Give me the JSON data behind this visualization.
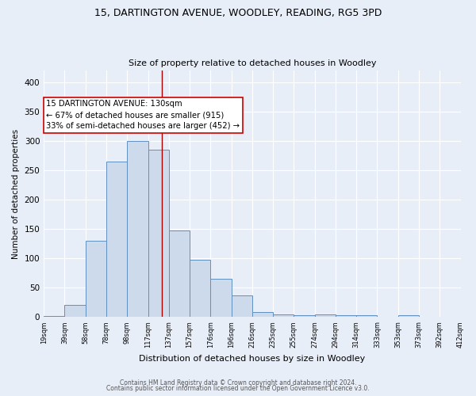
{
  "title1": "15, DARTINGTON AVENUE, WOODLEY, READING, RG5 3PD",
  "title2": "Size of property relative to detached houses in Woodley",
  "xlabel": "Distribution of detached houses by size in Woodley",
  "ylabel": "Number of detached properties",
  "bin_labels": [
    "19sqm",
    "39sqm",
    "58sqm",
    "78sqm",
    "98sqm",
    "117sqm",
    "137sqm",
    "157sqm",
    "176sqm",
    "196sqm",
    "216sqm",
    "235sqm",
    "255sqm",
    "274sqm",
    "294sqm",
    "314sqm",
    "333sqm",
    "353sqm",
    "373sqm",
    "392sqm",
    "412sqm"
  ],
  "bar_heights": [
    2,
    20,
    130,
    265,
    300,
    285,
    147,
    97,
    65,
    37,
    9,
    5,
    3,
    4,
    3,
    3,
    0,
    3,
    0,
    1
  ],
  "bar_color": "#ccdaec",
  "bar_edge_color": "#6090c0",
  "background_color": "#e8eef8",
  "grid_color": "#ffffff",
  "vline_color": "#aa0000",
  "annotation_text": "15 DARTINGTON AVENUE: 130sqm\n← 67% of detached houses are smaller (915)\n33% of semi-detached houses are larger (452) →",
  "annotation_box_color": "#ffffff",
  "annotation_box_edge": "#cc0000",
  "ylim": [
    0,
    420
  ],
  "yticks": [
    0,
    50,
    100,
    150,
    200,
    250,
    300,
    350,
    400
  ],
  "footer1": "Contains HM Land Registry data © Crown copyright and database right 2024.",
  "footer2": "Contains public sector information licensed under the Open Government Licence v3.0.",
  "n_bins": 20,
  "bin_sqm_values": [
    19,
    39,
    58,
    78,
    98,
    117,
    137,
    157,
    176,
    196,
    216,
    235,
    255,
    274,
    294,
    314,
    333,
    353,
    373,
    392,
    412
  ],
  "property_sqm": 130
}
